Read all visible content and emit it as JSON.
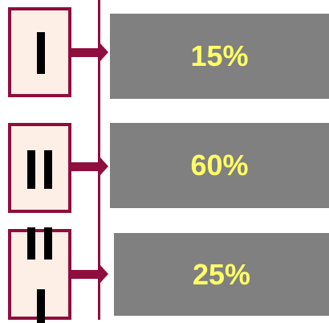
{
  "rows": [
    {
      "numeral": "I",
      "value": "15%"
    },
    {
      "numeral": "II",
      "value": "60%"
    },
    {
      "numeral": "III",
      "value": "25%"
    }
  ],
  "colors": {
    "box_border": "#8f0e3e",
    "box_fill": "#fdeee6",
    "panel_fill": "#808080",
    "value_text": "#ffff66",
    "numeral": "#000000"
  }
}
